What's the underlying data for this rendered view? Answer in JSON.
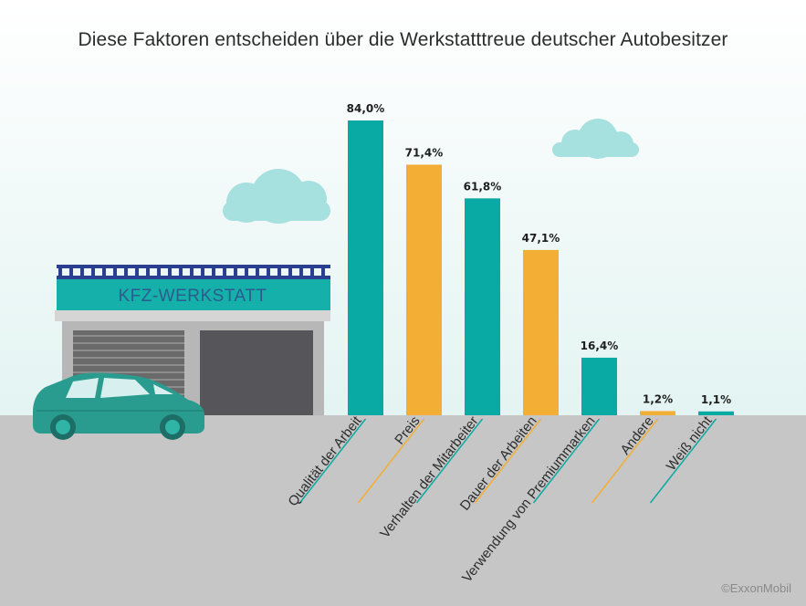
{
  "chart_data": {
    "type": "bar",
    "title": "Diese Faktoren entscheiden über die Werkstatttreue deutscher Autobesitzer",
    "categories": [
      "Qualität der Arbeit",
      "Preis",
      "Verhalten der Mitarbeiter",
      "Dauer der Arbeiten",
      "Verwendung von Premiummarken",
      "Andere",
      "Weiß nicht"
    ],
    "values": [
      84.0,
      71.4,
      61.8,
      47.1,
      16.4,
      1.2,
      1.1
    ],
    "value_labels": [
      "84,0%",
      "71,4%",
      "61,8%",
      "47,1%",
      "16,4%",
      "1,2%",
      "1,1%"
    ],
    "unit": "%",
    "ylim": [
      0,
      84
    ],
    "bar_colors": [
      "#0aaaa4",
      "#f3ae35",
      "#0aaaa4",
      "#f3ae35",
      "#0aaaa4",
      "#f3ae35",
      "#0aaaa4"
    ],
    "grid": false,
    "legend": "none"
  },
  "illustration": {
    "sign_text": "KFZ-WERKSTATT"
  },
  "credit": "©ExxonMobil",
  "colors": {
    "sky_top": "#ffffff",
    "sky_bottom": "#e3f4f2",
    "ground": "#c6c6c6",
    "cloud": "#a6e0df",
    "teal": "#0aaaa4",
    "orange": "#f3ae35",
    "car": "#2a9c8f"
  }
}
